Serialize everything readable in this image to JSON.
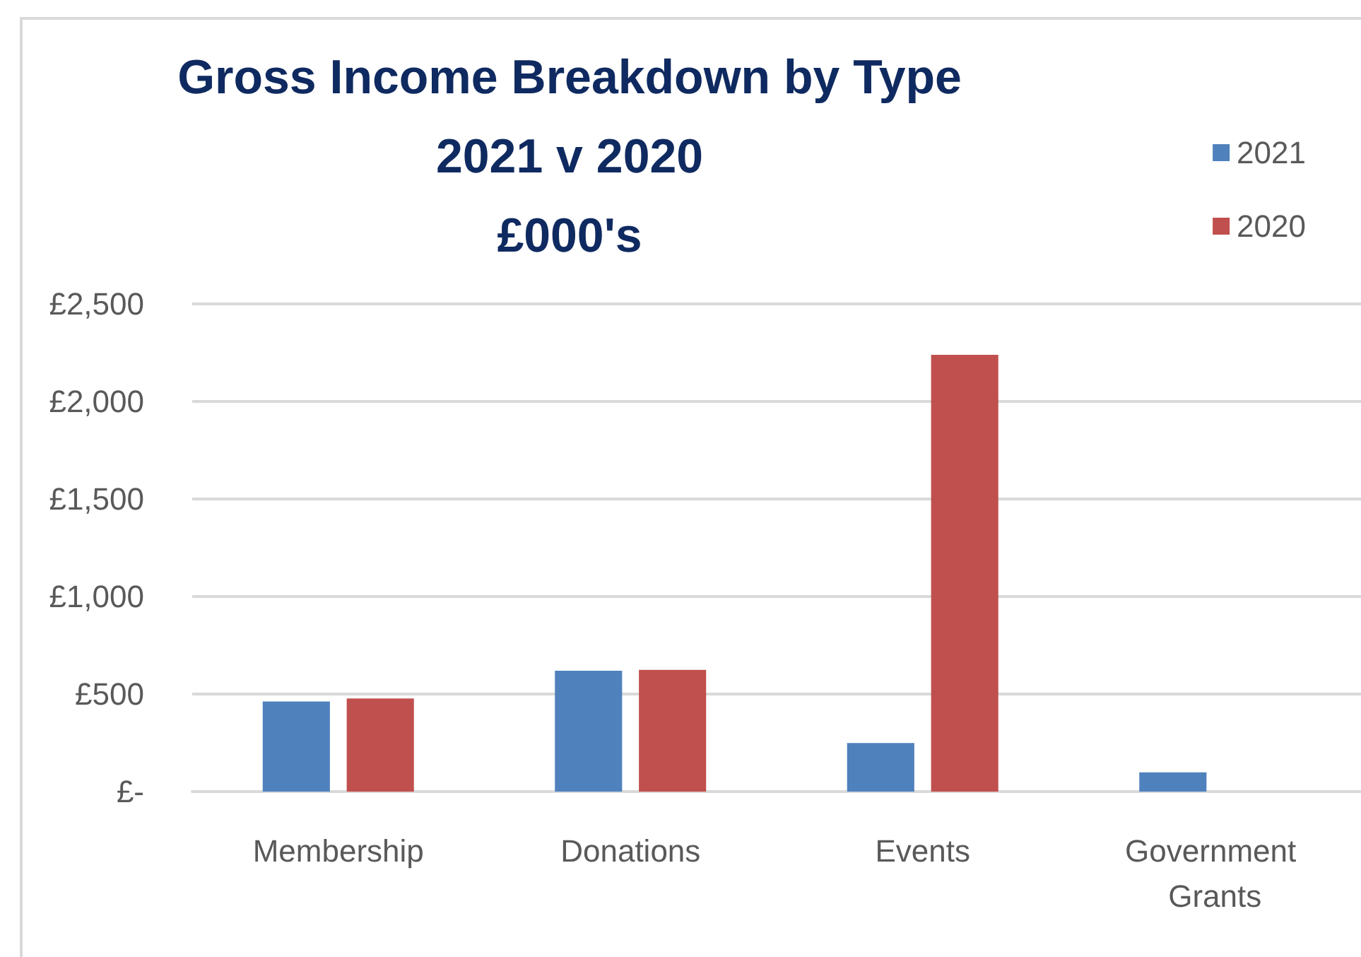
{
  "chart_data": {
    "type": "bar",
    "title": "Gross Income Breakdown by Type\n2021 v 2020\n£000's",
    "categories": [
      "Membership",
      "Donations",
      "Events",
      "Government Grants"
    ],
    "series": [
      {
        "name": "2021",
        "color": "#4f81bd",
        "values": [
          462,
          620,
          249,
          99
        ]
      },
      {
        "name": "2020",
        "color": "#c0504d",
        "values": [
          477,
          624,
          2239,
          null
        ]
      }
    ],
    "ylim": [
      0,
      2500
    ],
    "yticks": [
      {
        "value": 0,
        "label": "£-"
      },
      {
        "value": 500,
        "label": "£500"
      },
      {
        "value": 1000,
        "label": "£1,000"
      },
      {
        "value": 1500,
        "label": "£1,500"
      },
      {
        "value": 2000,
        "label": "£2,000"
      },
      {
        "value": 2500,
        "label": "£2,500"
      }
    ],
    "grid": "y",
    "legend": "top right"
  }
}
